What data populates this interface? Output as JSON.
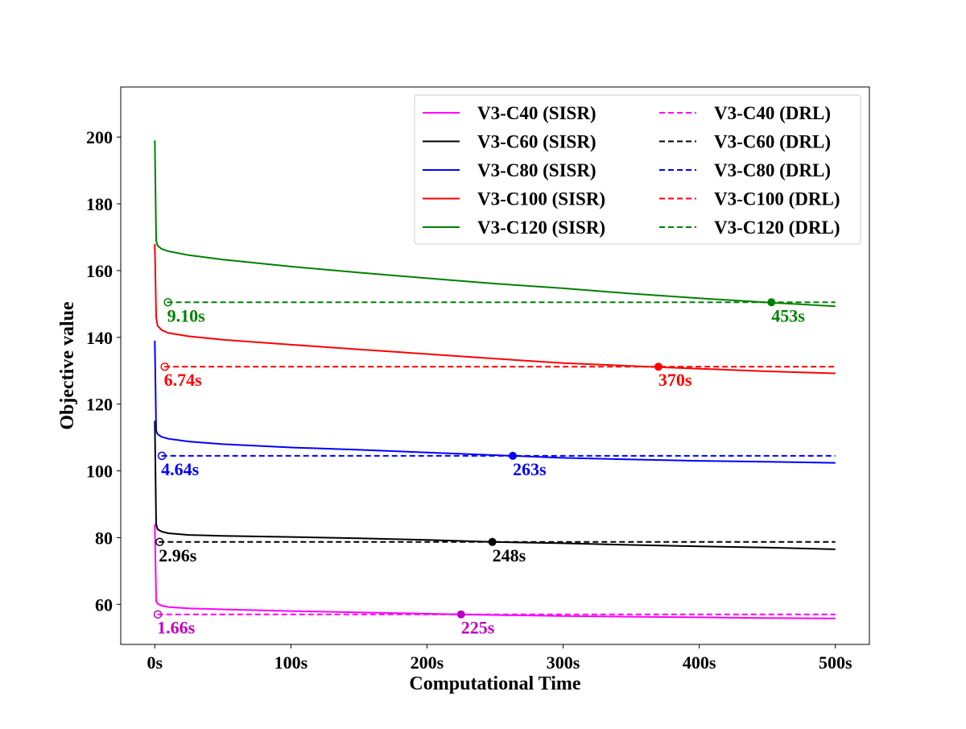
{
  "chart_data": {
    "type": "line",
    "title": "",
    "xlabel": "Computational Time",
    "ylabel": "Objective value",
    "xlim": [
      -25,
      525
    ],
    "ylim": [
      48,
      215
    ],
    "x_ticks": [
      0,
      100,
      200,
      300,
      400,
      500
    ],
    "x_tick_labels": [
      "0s",
      "100s",
      "200s",
      "300s",
      "400s",
      "500s"
    ],
    "y_ticks": [
      60,
      80,
      100,
      120,
      140,
      160,
      180,
      200
    ],
    "y_tick_labels": [
      "60",
      "80",
      "100",
      "120",
      "140",
      "160",
      "180",
      "200"
    ],
    "grid": false,
    "legend_position": "top-right",
    "series": [
      {
        "name": "V3-C40 (SISR)",
        "color": "#ff00ff",
        "style": "solid",
        "x": [
          0,
          1,
          2,
          5,
          10,
          25,
          50,
          100,
          150,
          200,
          225,
          250,
          300,
          350,
          400,
          450,
          500
        ],
        "y": [
          84,
          61,
          60.2,
          59.6,
          59.2,
          58.8,
          58.5,
          58.0,
          57.6,
          57.2,
          57.0,
          56.8,
          56.5,
          56.3,
          56.1,
          55.9,
          55.8
        ]
      },
      {
        "name": "V3-C60 (SISR)",
        "color": "#000000",
        "style": "solid",
        "x": [
          0,
          1,
          2,
          5,
          10,
          25,
          50,
          100,
          150,
          200,
          248,
          300,
          350,
          400,
          450,
          500
        ],
        "y": [
          115,
          84,
          82.5,
          81.8,
          81.3,
          80.8,
          80.5,
          80.2,
          79.8,
          79.3,
          78.7,
          78.3,
          77.8,
          77.4,
          77.0,
          76.5
        ]
      },
      {
        "name": "V3-C80 (SISR)",
        "color": "#0000ff",
        "style": "solid",
        "x": [
          0,
          1,
          2,
          5,
          10,
          25,
          50,
          100,
          150,
          200,
          263,
          300,
          350,
          400,
          450,
          500
        ],
        "y": [
          139,
          112,
          111,
          110.2,
          109.6,
          108.8,
          108.0,
          107.0,
          106.3,
          105.5,
          104.5,
          103.9,
          103.4,
          103.0,
          102.7,
          102.4
        ]
      },
      {
        "name": "V3-C100 (SISR)",
        "color": "#ff0000",
        "style": "solid",
        "x": [
          0,
          1,
          2,
          5,
          10,
          25,
          50,
          100,
          150,
          200,
          250,
          300,
          370,
          400,
          450,
          500
        ],
        "y": [
          168,
          146,
          143.5,
          142.2,
          141.3,
          140.3,
          139.3,
          137.8,
          136.4,
          135.0,
          133.6,
          132.3,
          131.1,
          130.6,
          129.8,
          129.2
        ]
      },
      {
        "name": "V3-C120 (SISR)",
        "color": "#008000",
        "style": "solid",
        "x": [
          0,
          1,
          2,
          5,
          10,
          25,
          50,
          100,
          150,
          200,
          250,
          300,
          350,
          400,
          453,
          500
        ],
        "y": [
          199,
          169,
          167.5,
          166.5,
          165.8,
          164.6,
          163.3,
          161.2,
          159.4,
          157.7,
          156.1,
          154.7,
          153.1,
          151.7,
          150.4,
          149.3
        ]
      },
      {
        "name": "V3-C40 (DRL)",
        "color": "#ff00ff",
        "style": "dashed",
        "x": [
          2,
          500
        ],
        "y": [
          57.0,
          57.0
        ]
      },
      {
        "name": "V3-C60 (DRL)",
        "color": "#000000",
        "style": "dashed",
        "x": [
          3,
          500
        ],
        "y": [
          78.7,
          78.7
        ]
      },
      {
        "name": "V3-C80 (DRL)",
        "color": "#0000ff",
        "style": "dashed",
        "x": [
          5,
          500
        ],
        "y": [
          104.5,
          104.5
        ]
      },
      {
        "name": "V3-C100 (DRL)",
        "color": "#ff0000",
        "style": "dashed",
        "x": [
          7,
          500
        ],
        "y": [
          131.2,
          131.2
        ]
      },
      {
        "name": "V3-C120 (DRL)",
        "color": "#008000",
        "style": "dashed",
        "x": [
          9,
          500
        ],
        "y": [
          150.5,
          150.5
        ]
      }
    ],
    "annotations": [
      {
        "text": "1.66s",
        "x": 1.66,
        "y": 57.0,
        "color": "#bf00bf",
        "marker": "open"
      },
      {
        "text": "225s",
        "x": 225,
        "y": 57.0,
        "color": "#bf00bf",
        "marker": "filled"
      },
      {
        "text": "2.96s",
        "x": 2.96,
        "y": 78.7,
        "color": "#000000",
        "marker": "open"
      },
      {
        "text": "248s",
        "x": 248,
        "y": 78.7,
        "color": "#000000",
        "marker": "filled"
      },
      {
        "text": "4.64s",
        "x": 4.64,
        "y": 104.5,
        "color": "#0000ff",
        "marker": "open"
      },
      {
        "text": "263s",
        "x": 263,
        "y": 104.5,
        "color": "#0000ff",
        "marker": "filled"
      },
      {
        "text": "6.74s",
        "x": 6.74,
        "y": 131.2,
        "color": "#ff0000",
        "marker": "open"
      },
      {
        "text": "370s",
        "x": 370,
        "y": 131.2,
        "color": "#ff0000",
        "marker": "filled"
      },
      {
        "text": "9.10s",
        "x": 9.1,
        "y": 150.5,
        "color": "#008000",
        "marker": "open"
      },
      {
        "text": "453s",
        "x": 453,
        "y": 150.5,
        "color": "#008000",
        "marker": "filled"
      }
    ]
  }
}
